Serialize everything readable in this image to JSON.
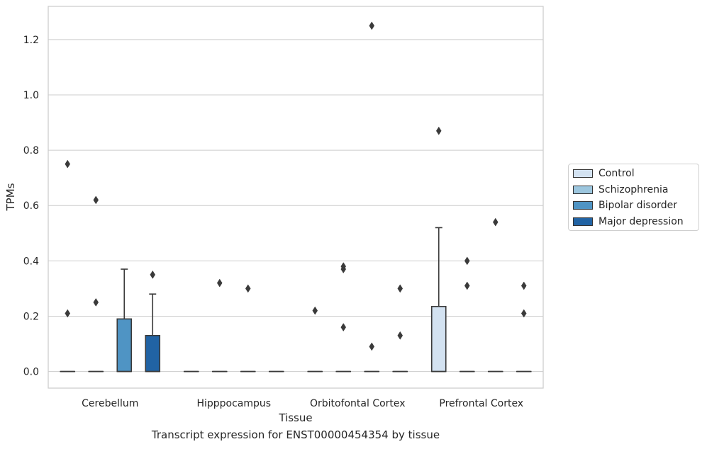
{
  "caption": "Transcript expression for ENST00000454354 by tissue",
  "chart_data": {
    "type": "box",
    "title": "",
    "xlabel": "Tissue",
    "ylabel": "TPMs",
    "categories": [
      "Cerebellum",
      "Hipppocampus",
      "Orbitofontal Cortex",
      "Prefrontal Cortex"
    ],
    "ylim": [
      -0.06,
      1.32
    ],
    "yticks": [
      0.0,
      0.2,
      0.4,
      0.6,
      0.8,
      1.0,
      1.2
    ],
    "ytick_labels": [
      "0.0",
      "0.2",
      "0.4",
      "0.6",
      "0.8",
      "1.0",
      "1.2"
    ],
    "grid": true,
    "legend_position": "right",
    "series": [
      {
        "name": "Control",
        "color": "#d3e2f1",
        "boxes": [
          {
            "q1": 0.0,
            "median": 0.0,
            "q3": 0.0,
            "whislo": 0.0,
            "whishi": 0.0,
            "fliers": [
              0.75,
              0.21
            ]
          },
          {
            "q1": 0.0,
            "median": 0.0,
            "q3": 0.0,
            "whislo": 0.0,
            "whishi": 0.0,
            "fliers": []
          },
          {
            "q1": 0.0,
            "median": 0.0,
            "q3": 0.0,
            "whislo": 0.0,
            "whishi": 0.0,
            "fliers": [
              0.22
            ]
          },
          {
            "q1": 0.0,
            "median": 0.0,
            "q3": 0.235,
            "whislo": 0.0,
            "whishi": 0.52,
            "fliers": [
              0.87
            ]
          }
        ]
      },
      {
        "name": "Schizophrenia",
        "color": "#9cc6de",
        "boxes": [
          {
            "q1": 0.0,
            "median": 0.0,
            "q3": 0.0,
            "whislo": 0.0,
            "whishi": 0.0,
            "fliers": [
              0.62,
              0.25
            ]
          },
          {
            "q1": 0.0,
            "median": 0.0,
            "q3": 0.0,
            "whislo": 0.0,
            "whishi": 0.0,
            "fliers": [
              0.32
            ]
          },
          {
            "q1": 0.0,
            "median": 0.0,
            "q3": 0.0,
            "whislo": 0.0,
            "whishi": 0.0,
            "fliers": [
              0.38,
              0.37,
              0.16
            ]
          },
          {
            "q1": 0.0,
            "median": 0.0,
            "q3": 0.0,
            "whislo": 0.0,
            "whishi": 0.0,
            "fliers": [
              0.4,
              0.31
            ]
          }
        ]
      },
      {
        "name": "Bipolar disorder",
        "color": "#4f94c4",
        "boxes": [
          {
            "q1": 0.0,
            "median": 0.0,
            "q3": 0.19,
            "whislo": 0.0,
            "whishi": 0.37,
            "fliers": []
          },
          {
            "q1": 0.0,
            "median": 0.0,
            "q3": 0.0,
            "whislo": 0.0,
            "whishi": 0.0,
            "fliers": [
              0.3
            ]
          },
          {
            "q1": 0.0,
            "median": 0.0,
            "q3": 0.0,
            "whislo": 0.0,
            "whishi": 0.0,
            "fliers": [
              1.25,
              0.09
            ]
          },
          {
            "q1": 0.0,
            "median": 0.0,
            "q3": 0.0,
            "whislo": 0.0,
            "whishi": 0.0,
            "fliers": [
              0.54
            ]
          }
        ]
      },
      {
        "name": "Major depression",
        "color": "#2163a4",
        "boxes": [
          {
            "q1": 0.0,
            "median": 0.0,
            "q3": 0.13,
            "whislo": 0.0,
            "whishi": 0.28,
            "fliers": [
              0.35
            ]
          },
          {
            "q1": 0.0,
            "median": 0.0,
            "q3": 0.0,
            "whislo": 0.0,
            "whishi": 0.0,
            "fliers": []
          },
          {
            "q1": 0.0,
            "median": 0.0,
            "q3": 0.0,
            "whislo": 0.0,
            "whishi": 0.0,
            "fliers": [
              0.3,
              0.13
            ]
          },
          {
            "q1": 0.0,
            "median": 0.0,
            "q3": 0.0,
            "whislo": 0.0,
            "whishi": 0.0,
            "fliers": [
              0.31,
              0.21
            ]
          }
        ]
      }
    ]
  }
}
